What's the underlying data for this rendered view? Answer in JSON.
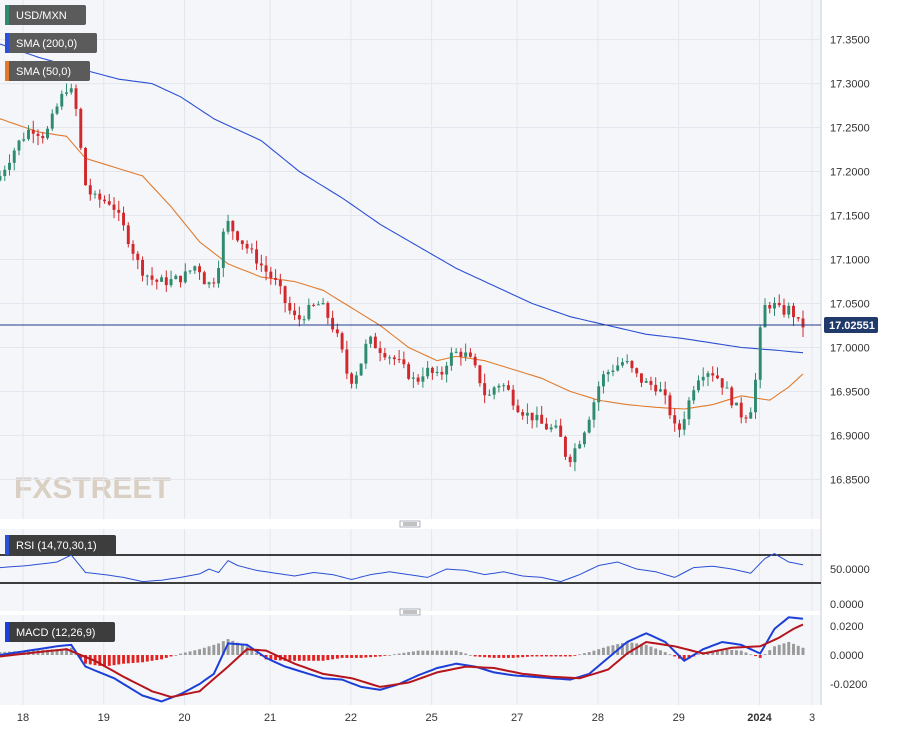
{
  "colors": {
    "background": "#ffffff",
    "panel_bg": "#f5f6f9",
    "grid": "#e3e6ee",
    "bull": "#2e8b6e",
    "bear": "#d0282c",
    "sma200": "#2b4fd6",
    "sma50": "#e07b2e",
    "rsi": "#2b4fd6",
    "macd": "#1d3fd9",
    "signal": "#b5151c",
    "hist_pos": "#9a9a9a",
    "hist_neg": "#e32222",
    "price_line": "#1f3a8a",
    "price_tag": "#1f3a6b",
    "legend_bg": "#5b5b5b",
    "watermark": "#d9cfc3"
  },
  "chart_data": [
    {
      "type": "candlestick",
      "symbol": "USD/MXN",
      "legend": [
        {
          "label": "USD/MXN",
          "color": "#2e8b6e"
        },
        {
          "label": "SMA (200,0)",
          "color": "#2b4fd6"
        },
        {
          "label": "SMA (50,0)",
          "color": "#e07b2e"
        }
      ],
      "x_ticks": [
        "18",
        "19",
        "20",
        "21",
        "22",
        "25",
        "27",
        "28",
        "29",
        "2024",
        "3"
      ],
      "y_ticks": [
        "17.3500",
        "17.3000",
        "17.2500",
        "17.2000",
        "17.1500",
        "17.1000",
        "17.0500",
        "17.0000",
        "16.9500",
        "16.9000",
        "16.8500"
      ],
      "ylim": [
        16.805,
        17.395
      ],
      "current_price": "17.02551",
      "current_price_value": 17.02551,
      "price_path": [
        [
          0,
          17.19
        ],
        [
          4,
          17.23
        ],
        [
          7,
          17.25
        ],
        [
          10,
          17.24
        ],
        [
          13,
          17.28
        ],
        [
          15,
          17.3
        ],
        [
          17,
          17.26
        ],
        [
          18,
          17.19
        ],
        [
          20,
          17.17
        ],
        [
          24,
          17.165
        ],
        [
          27,
          17.13
        ],
        [
          30,
          17.09
        ],
        [
          33,
          17.075
        ],
        [
          36,
          17.075
        ],
        [
          39,
          17.08
        ],
        [
          42,
          17.095
        ],
        [
          44,
          17.07
        ],
        [
          46,
          17.08
        ],
        [
          48,
          17.145
        ],
        [
          50,
          17.13
        ],
        [
          53,
          17.11
        ],
        [
          56,
          17.09
        ],
        [
          59,
          17.07
        ],
        [
          61,
          17.045
        ],
        [
          63,
          17.03
        ],
        [
          66,
          17.045
        ],
        [
          68,
          17.05
        ],
        [
          70,
          17.03
        ],
        [
          72,
          17.005
        ],
        [
          74,
          16.96
        ],
        [
          76,
          16.975
        ],
        [
          78,
          17.01
        ],
        [
          80,
          17.0
        ],
        [
          84,
          16.985
        ],
        [
          88,
          16.96
        ],
        [
          90,
          16.975
        ],
        [
          93,
          16.965
        ],
        [
          95,
          16.99
        ],
        [
          97,
          16.995
        ],
        [
          99,
          16.99
        ],
        [
          101,
          16.97
        ],
        [
          103,
          16.94
        ],
        [
          105,
          16.96
        ],
        [
          107,
          16.955
        ],
        [
          109,
          16.935
        ],
        [
          111,
          16.925
        ],
        [
          113,
          16.92
        ],
        [
          115,
          16.91
        ],
        [
          118,
          16.905
        ],
        [
          120,
          16.87
        ],
        [
          123,
          16.9
        ],
        [
          125,
          16.93
        ],
        [
          127,
          16.965
        ],
        [
          129,
          16.975
        ],
        [
          132,
          16.985
        ],
        [
          134,
          16.97
        ],
        [
          136,
          16.96
        ],
        [
          139,
          16.955
        ],
        [
          141,
          16.935
        ],
        [
          143,
          16.9
        ],
        [
          145,
          16.93
        ],
        [
          147,
          16.965
        ],
        [
          149,
          16.975
        ],
        [
          151,
          16.97
        ],
        [
          153,
          16.955
        ],
        [
          155,
          16.935
        ],
        [
          157,
          16.92
        ],
        [
          159,
          16.935
        ],
        [
          161,
          17.045
        ],
        [
          163,
          17.05
        ],
        [
          165,
          17.04
        ],
        [
          167,
          17.045
        ],
        [
          168,
          17.03
        ],
        [
          169,
          17.025
        ]
      ],
      "sma200": [
        [
          0,
          17.345
        ],
        [
          8,
          17.33
        ],
        [
          18,
          17.315
        ],
        [
          25,
          17.305
        ],
        [
          32,
          17.3
        ],
        [
          38,
          17.285
        ],
        [
          45,
          17.26
        ],
        [
          55,
          17.235
        ],
        [
          63,
          17.2
        ],
        [
          72,
          17.17
        ],
        [
          80,
          17.14
        ],
        [
          88,
          17.115
        ],
        [
          96,
          17.09
        ],
        [
          104,
          17.07
        ],
        [
          112,
          17.05
        ],
        [
          120,
          17.035
        ],
        [
          128,
          17.025
        ],
        [
          136,
          17.015
        ],
        [
          144,
          17.01
        ],
        [
          150,
          17.005
        ],
        [
          156,
          17.0
        ],
        [
          163,
          16.997
        ],
        [
          169,
          16.994
        ]
      ],
      "sma50": [
        [
          0,
          17.26
        ],
        [
          8,
          17.245
        ],
        [
          14,
          17.24
        ],
        [
          18,
          17.215
        ],
        [
          24,
          17.205
        ],
        [
          30,
          17.195
        ],
        [
          36,
          17.16
        ],
        [
          42,
          17.12
        ],
        [
          48,
          17.095
        ],
        [
          55,
          17.08
        ],
        [
          62,
          17.075
        ],
        [
          68,
          17.065
        ],
        [
          74,
          17.045
        ],
        [
          80,
          17.025
        ],
        [
          86,
          17.0
        ],
        [
          92,
          16.985
        ],
        [
          96,
          16.99
        ],
        [
          102,
          16.985
        ],
        [
          108,
          16.975
        ],
        [
          114,
          16.965
        ],
        [
          120,
          16.95
        ],
        [
          126,
          16.94
        ],
        [
          132,
          16.935
        ],
        [
          138,
          16.932
        ],
        [
          144,
          16.93
        ],
        [
          150,
          16.935
        ],
        [
          156,
          16.945
        ],
        [
          162,
          16.94
        ],
        [
          166,
          16.955
        ],
        [
          169,
          16.97
        ]
      ]
    },
    {
      "type": "line",
      "name": "RSI (14,70,30,1)",
      "y_ticks": [
        "50.0000",
        "0.0000"
      ],
      "ylim": [
        0,
        100
      ],
      "levels": [
        70,
        30
      ],
      "path": [
        [
          0,
          52
        ],
        [
          6,
          55
        ],
        [
          12,
          60
        ],
        [
          15,
          70
        ],
        [
          18,
          45
        ],
        [
          22,
          42
        ],
        [
          26,
          38
        ],
        [
          30,
          32
        ],
        [
          34,
          34
        ],
        [
          38,
          38
        ],
        [
          42,
          43
        ],
        [
          44,
          50
        ],
        [
          46,
          45
        ],
        [
          48,
          62
        ],
        [
          50,
          55
        ],
        [
          54,
          48
        ],
        [
          58,
          44
        ],
        [
          62,
          40
        ],
        [
          66,
          45
        ],
        [
          70,
          42
        ],
        [
          74,
          35
        ],
        [
          78,
          42
        ],
        [
          82,
          46
        ],
        [
          86,
          42
        ],
        [
          90,
          38
        ],
        [
          94,
          50
        ],
        [
          98,
          48
        ],
        [
          102,
          42
        ],
        [
          106,
          46
        ],
        [
          110,
          40
        ],
        [
          114,
          38
        ],
        [
          118,
          32
        ],
        [
          122,
          42
        ],
        [
          126,
          55
        ],
        [
          130,
          60
        ],
        [
          134,
          50
        ],
        [
          138,
          46
        ],
        [
          142,
          38
        ],
        [
          146,
          52
        ],
        [
          150,
          54
        ],
        [
          154,
          50
        ],
        [
          158,
          44
        ],
        [
          161,
          65
        ],
        [
          163,
          72
        ],
        [
          166,
          60
        ],
        [
          169,
          56
        ]
      ]
    },
    {
      "type": "bar+line",
      "name": "MACD (12,26,9)",
      "y_ticks": [
        "0.0200",
        "0.0000",
        "-0.0200"
      ],
      "ylim": [
        -0.03,
        0.03
      ],
      "macd": [
        [
          0,
          0.0
        ],
        [
          6,
          0.003
        ],
        [
          12,
          0.006
        ],
        [
          15,
          0.007
        ],
        [
          18,
          -0.008
        ],
        [
          24,
          -0.016
        ],
        [
          30,
          -0.028
        ],
        [
          34,
          -0.032
        ],
        [
          38,
          -0.027
        ],
        [
          42,
          -0.02
        ],
        [
          45,
          -0.013
        ],
        [
          48,
          0.008
        ],
        [
          52,
          0.007
        ],
        [
          56,
          -0.002
        ],
        [
          60,
          -0.008
        ],
        [
          64,
          -0.012
        ],
        [
          68,
          -0.016
        ],
        [
          72,
          -0.017
        ],
        [
          76,
          -0.022
        ],
        [
          80,
          -0.024
        ],
        [
          84,
          -0.02
        ],
        [
          88,
          -0.014
        ],
        [
          92,
          -0.009
        ],
        [
          96,
          -0.006
        ],
        [
          100,
          -0.008
        ],
        [
          104,
          -0.012
        ],
        [
          108,
          -0.014
        ],
        [
          112,
          -0.015
        ],
        [
          116,
          -0.016
        ],
        [
          120,
          -0.017
        ],
        [
          124,
          -0.013
        ],
        [
          128,
          -0.002
        ],
        [
          132,
          0.009
        ],
        [
          136,
          0.015
        ],
        [
          140,
          0.009
        ],
        [
          144,
          -0.004
        ],
        [
          148,
          0.004
        ],
        [
          152,
          0.009
        ],
        [
          156,
          0.007
        ],
        [
          160,
          0.001
        ],
        [
          163,
          0.018
        ],
        [
          166,
          0.026
        ],
        [
          169,
          0.025
        ]
      ],
      "signal": [
        [
          0,
          -0.001
        ],
        [
          8,
          0.002
        ],
        [
          14,
          0.004
        ],
        [
          20,
          -0.004
        ],
        [
          26,
          -0.015
        ],
        [
          32,
          -0.025
        ],
        [
          36,
          -0.029
        ],
        [
          42,
          -0.025
        ],
        [
          48,
          -0.008
        ],
        [
          52,
          0.004
        ],
        [
          56,
          0.003
        ],
        [
          62,
          -0.006
        ],
        [
          68,
          -0.013
        ],
        [
          74,
          -0.016
        ],
        [
          80,
          -0.022
        ],
        [
          86,
          -0.019
        ],
        [
          92,
          -0.012
        ],
        [
          98,
          -0.008
        ],
        [
          104,
          -0.009
        ],
        [
          110,
          -0.013
        ],
        [
          116,
          -0.015
        ],
        [
          122,
          -0.016
        ],
        [
          128,
          -0.01
        ],
        [
          132,
          0.001
        ],
        [
          136,
          0.009
        ],
        [
          142,
          0.006
        ],
        [
          148,
          0.001
        ],
        [
          154,
          0.005
        ],
        [
          160,
          0.006
        ],
        [
          164,
          0.012
        ],
        [
          167,
          0.018
        ],
        [
          169,
          0.021
        ]
      ],
      "hist": [
        [
          0,
          0.002
        ],
        [
          6,
          0.003
        ],
        [
          12,
          0.004
        ],
        [
          15,
          0.005
        ],
        [
          18,
          -0.006
        ],
        [
          22,
          -0.008
        ],
        [
          26,
          -0.006
        ],
        [
          30,
          -0.005
        ],
        [
          34,
          -0.003
        ],
        [
          38,
          0.001
        ],
        [
          42,
          0.004
        ],
        [
          46,
          0.008
        ],
        [
          48,
          0.011
        ],
        [
          52,
          0.006
        ],
        [
          56,
          -0.003
        ],
        [
          60,
          -0.004
        ],
        [
          64,
          -0.004
        ],
        [
          68,
          -0.004
        ],
        [
          72,
          -0.002
        ],
        [
          76,
          -0.002
        ],
        [
          80,
          -0.001
        ],
        [
          84,
          0.001
        ],
        [
          88,
          0.003
        ],
        [
          92,
          0.003
        ],
        [
          96,
          0.003
        ],
        [
          100,
          -0.001
        ],
        [
          104,
          -0.002
        ],
        [
          108,
          -0.002
        ],
        [
          112,
          -0.001
        ],
        [
          116,
          -0.001
        ],
        [
          120,
          -0.001
        ],
        [
          124,
          0.002
        ],
        [
          128,
          0.006
        ],
        [
          132,
          0.009
        ],
        [
          136,
          0.007
        ],
        [
          140,
          0.002
        ],
        [
          144,
          -0.004
        ],
        [
          148,
          0.002
        ],
        [
          152,
          0.004
        ],
        [
          156,
          0.003
        ],
        [
          160,
          -0.002
        ],
        [
          163,
          0.006
        ],
        [
          166,
          0.009
        ],
        [
          169,
          0.005
        ]
      ]
    }
  ]
}
